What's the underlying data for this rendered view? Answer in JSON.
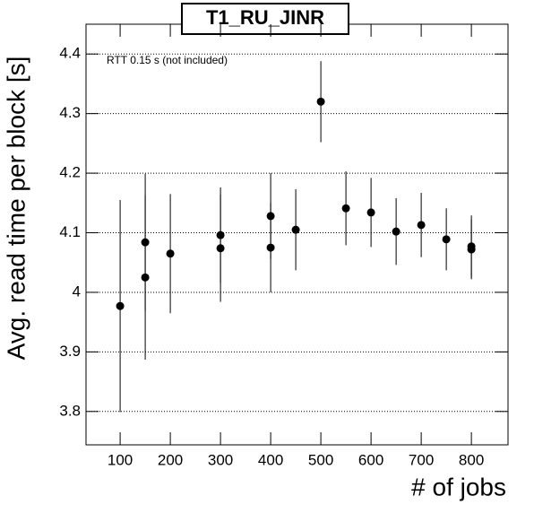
{
  "chart_data": {
    "type": "scatter",
    "title": "T1_RU_JINR",
    "annotation": "RTT 0.15 s (not included)",
    "x_label": "# of jobs",
    "y_label": "Avg. read time per block [s]",
    "x": [
      100,
      150,
      150,
      200,
      300,
      300,
      400,
      400,
      450,
      500,
      550,
      600,
      650,
      700,
      750,
      800,
      800
    ],
    "values": [
      3.977,
      4.084,
      4.025,
      4.065,
      4.096,
      4.074,
      4.128,
      4.075,
      4.105,
      4.32,
      4.141,
      4.134,
      4.102,
      4.113,
      4.089,
      4.077,
      4.072
    ],
    "yerr": [
      0.178,
      0.115,
      0.138,
      0.1,
      0.08,
      0.09,
      0.072,
      0.075,
      0.068,
      0.068,
      0.062,
      0.058,
      0.056,
      0.054,
      0.052,
      0.052,
      0.05
    ],
    "color": "#000000",
    "xlim": [
      32,
      873
    ],
    "ylim": [
      3.744,
      4.45
    ],
    "xticks": [
      100,
      200,
      300,
      400,
      500,
      600,
      700,
      800
    ],
    "yticks": [
      3.8,
      3.9,
      4,
      4.1,
      4.2,
      4.3,
      4.4
    ],
    "grid": true
  }
}
